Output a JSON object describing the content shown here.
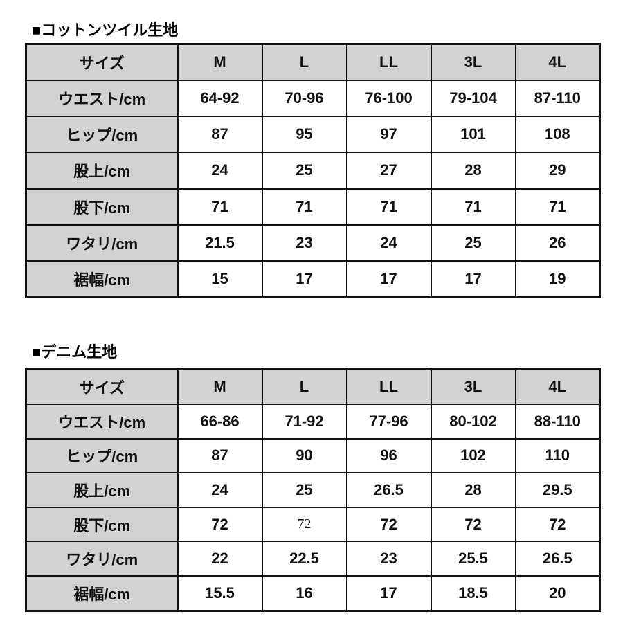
{
  "tables": [
    {
      "title": "■コットンツイル生地",
      "header": [
        "サイズ",
        "M",
        "L",
        "LL",
        "3L",
        "4L"
      ],
      "rows": [
        [
          "ウエスト/cm",
          "64-92",
          "70-96",
          "76-100",
          "79-104",
          "87-110"
        ],
        [
          "ヒップ/cm",
          "87",
          "95",
          "97",
          "101",
          "108"
        ],
        [
          "股上/cm",
          "24",
          "25",
          "27",
          "28",
          "29"
        ],
        [
          "股下/cm",
          "71",
          "71",
          "71",
          "71",
          "71"
        ],
        [
          "ワタリ/cm",
          "21.5",
          "23",
          "24",
          "25",
          "26"
        ],
        [
          "裾幅/cm",
          "15",
          "17",
          "17",
          "17",
          "19"
        ]
      ]
    },
    {
      "title": "■デニム生地",
      "header": [
        "サイズ",
        "M",
        "L",
        "LL",
        "3L",
        "4L"
      ],
      "rows": [
        [
          "ウエスト/cm",
          "66-86",
          "71-92",
          "77-96",
          "80-102",
          "88-110"
        ],
        [
          "ヒップ/cm",
          "87",
          "90",
          "96",
          "102",
          "110"
        ],
        [
          "股上/cm",
          "24",
          "25",
          "26.5",
          "28",
          "29.5"
        ],
        [
          "股下/cm",
          "72",
          "72",
          "72",
          "72",
          "72"
        ],
        [
          "ワタリ/cm",
          "22",
          "22.5",
          "23",
          "25.5",
          "26.5"
        ],
        [
          "裾幅/cm",
          "15.5",
          "16",
          "17",
          "18.5",
          "20"
        ]
      ]
    }
  ],
  "colors": {
    "header_bg": "#d2d2d2",
    "border": "#111111"
  }
}
